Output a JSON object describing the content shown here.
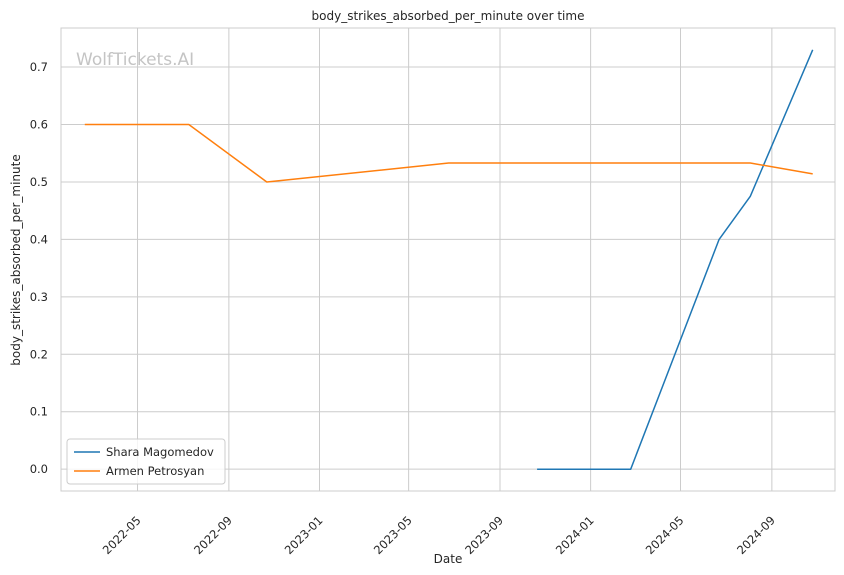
{
  "chart_data": {
    "type": "line",
    "title": "body_strikes_absorbed_per_minute over time",
    "xlabel": "Date",
    "ylabel": "body_strikes_absorbed_per_minute",
    "watermark": "WolfTickets.AI",
    "x_ticks": [
      "2022-05",
      "2022-09",
      "2023-01",
      "2023-05",
      "2023-09",
      "2024-01",
      "2024-05",
      "2024-09"
    ],
    "y_ticks": [
      "0.0",
      "0.1",
      "0.2",
      "0.3",
      "0.4",
      "0.5",
      "0.6",
      "0.7"
    ],
    "ylim": [
      -0.038,
      0.768
    ],
    "xlim": [
      "2022-01-18",
      "2024-11-25"
    ],
    "grid": true,
    "legend_position": "lower-left",
    "series": [
      {
        "name": "Shara Magomedov",
        "color": "#1f77b4",
        "points": [
          {
            "x": "2023-10-21",
            "y": 0.0
          },
          {
            "x": "2024-02-24",
            "y": 0.0
          },
          {
            "x": "2024-06-22",
            "y": 0.4
          },
          {
            "x": "2024-08-03",
            "y": 0.475
          },
          {
            "x": "2024-10-26",
            "y": 0.73
          }
        ]
      },
      {
        "name": "Armen Petrosyan",
        "color": "#ff7f0e",
        "points": [
          {
            "x": "2022-02-19",
            "y": 0.6
          },
          {
            "x": "2022-07-09",
            "y": 0.6
          },
          {
            "x": "2022-10-22",
            "y": 0.5
          },
          {
            "x": "2023-06-24",
            "y": 0.533
          },
          {
            "x": "2024-08-03",
            "y": 0.533
          },
          {
            "x": "2024-10-26",
            "y": 0.514
          }
        ]
      }
    ]
  }
}
